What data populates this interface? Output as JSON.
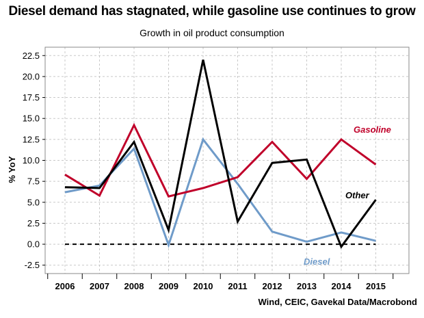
{
  "chart_data": {
    "type": "line",
    "title": "Diesel demand has stagnated, while gasoline use continues to grow",
    "subtitle": "Growth in oil product consumption",
    "ylabel": "% YoY",
    "xlabel": "",
    "source": "Wind, CEIC, Gavekal Data/Macrobond",
    "categories": [
      "2006",
      "2007",
      "2008",
      "2009",
      "2010",
      "2011",
      "2012",
      "2013",
      "2014",
      "2015"
    ],
    "yticks": [
      "-2.5",
      "0.0",
      "2.5",
      "5.0",
      "7.5",
      "10.0",
      "12.5",
      "15.0",
      "17.5",
      "20.0",
      "22.5"
    ],
    "ylim": [
      -3.5,
      23.5
    ],
    "grid": true,
    "series": [
      {
        "name": "Gasoline",
        "color": "#c0002a",
        "values": [
          8.3,
          5.8,
          14.2,
          5.7,
          6.7,
          8.0,
          12.2,
          7.8,
          12.5,
          9.5
        ]
      },
      {
        "name": "Other",
        "color": "#000000",
        "values": [
          6.8,
          6.7,
          12.2,
          1.7,
          22.0,
          2.7,
          9.7,
          10.1,
          -0.3,
          5.3
        ]
      },
      {
        "name": "Diesel",
        "color": "#6f9bc9",
        "values": [
          6.2,
          7.0,
          11.4,
          -0.1,
          12.5,
          7.2,
          1.5,
          0.3,
          1.4,
          0.4
        ]
      }
    ],
    "reference_line": {
      "value": 0.0,
      "style": "dashed",
      "color": "#000000"
    }
  }
}
